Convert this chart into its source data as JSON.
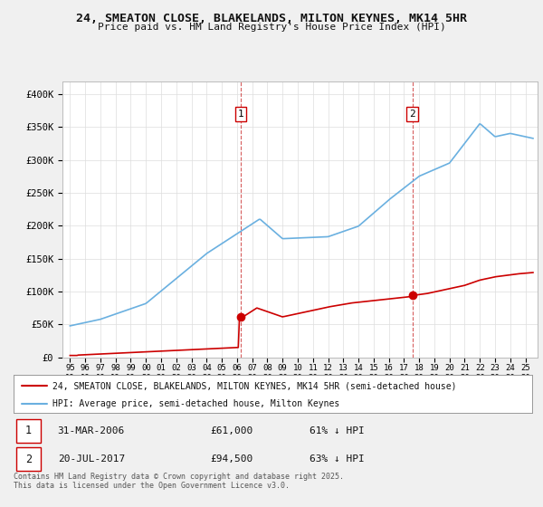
{
  "title": "24, SMEATON CLOSE, BLAKELANDS, MILTON KEYNES, MK14 5HR",
  "subtitle": "Price paid vs. HM Land Registry's House Price Index (HPI)",
  "legend_line1": "24, SMEATON CLOSE, BLAKELANDS, MILTON KEYNES, MK14 5HR (semi-detached house)",
  "legend_line2": "HPI: Average price, semi-detached house, Milton Keynes",
  "footer": "Contains HM Land Registry data © Crown copyright and database right 2025.\nThis data is licensed under the Open Government Licence v3.0.",
  "transaction1": {
    "label": "1",
    "date": "31-MAR-2006",
    "price": "£61,000",
    "pct": "61% ↓ HPI"
  },
  "transaction2": {
    "label": "2",
    "date": "20-JUL-2017",
    "price": "£94,500",
    "pct": "63% ↓ HPI"
  },
  "hpi_color": "#6ab0e0",
  "price_color": "#cc0000",
  "background_color": "#f0f0f0",
  "plot_bg_color": "#ffffff",
  "marker1_x": 2006.25,
  "marker1_y": 61000,
  "marker2_x": 2017.55,
  "marker2_y": 94500,
  "vline1_x": 2006.25,
  "vline2_x": 2017.55,
  "ylim": [
    0,
    420000
  ],
  "xlim": [
    1994.5,
    2025.8
  ]
}
